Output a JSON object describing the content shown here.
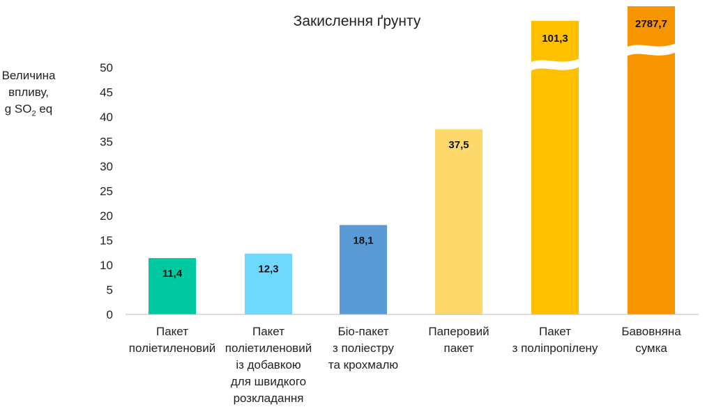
{
  "chart_data": {
    "type": "bar",
    "title": "Закислення ґрунту",
    "ylabel_lines": [
      "Величина",
      "впливу,"
    ],
    "ylabel_unit": {
      "pre": "g SO",
      "sub": "2",
      "post": " eq"
    },
    "xlabel": "",
    "ylim": [
      0,
      50
    ],
    "yticks": [
      0,
      5,
      10,
      15,
      20,
      25,
      30,
      35,
      40,
      45,
      50
    ],
    "grid": false,
    "categories": [
      [
        "Пакет",
        "поліетиленовий"
      ],
      [
        "Пакет",
        "поліетиленовий",
        "із добавкою",
        "для швидкого",
        "розкладання"
      ],
      [
        "Біо-пакет",
        "з поліестру",
        "та крохмалю"
      ],
      [
        "Паперовий",
        "пакет"
      ],
      [
        "Пакет",
        "з поліпропілену"
      ],
      [
        "Бавовняна",
        "сумка"
      ]
    ],
    "values": [
      11.4,
      12.3,
      18.1,
      37.5,
      101.3,
      2787.7
    ],
    "value_labels": [
      "11,4",
      "12,3",
      "18,1",
      "37,5",
      "101,3",
      "2787,7"
    ],
    "broken_axis_bars": [
      4,
      5
    ],
    "colors": [
      "#00c9a1",
      "#6fd9fd",
      "#5b9bd5",
      "#fdd96b",
      "#ffc000",
      "#f79500"
    ]
  }
}
